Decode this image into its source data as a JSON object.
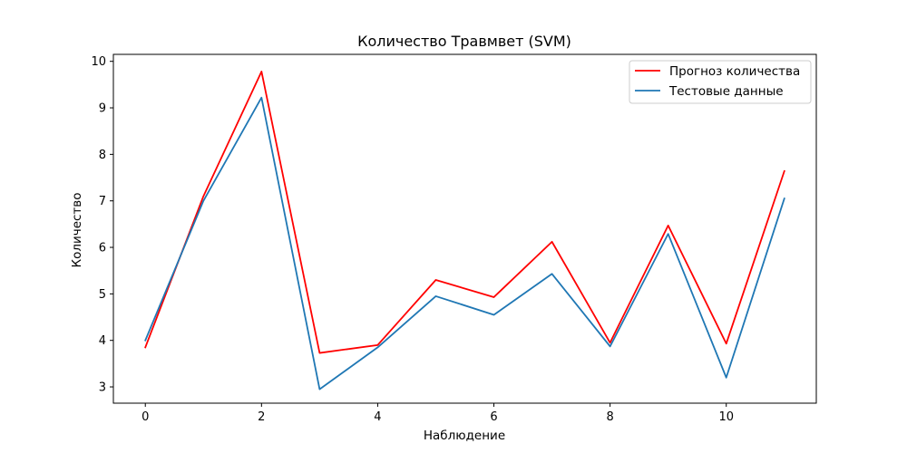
{
  "chart_data": {
    "type": "line",
    "title": "Количество Травмвет (SVM)",
    "xlabel": "Наблюдение",
    "ylabel": "Количество",
    "xlim": [
      -0.55,
      11.55
    ],
    "ylim": [
      2.65,
      10.15
    ],
    "xticks": [
      0,
      2,
      4,
      6,
      8,
      10
    ],
    "yticks": [
      3,
      4,
      5,
      6,
      7,
      8,
      9,
      10
    ],
    "x": [
      0,
      1,
      2,
      3,
      4,
      5,
      6,
      7,
      8,
      9,
      10,
      11
    ],
    "series": [
      {
        "name": "Прогноз количества",
        "color": "#ff0000",
        "values": [
          3.85,
          7.1,
          9.78,
          3.73,
          3.9,
          5.3,
          4.93,
          6.12,
          3.95,
          6.47,
          3.93,
          7.64
        ]
      },
      {
        "name": "Тестовые данные",
        "color": "#1f77b4",
        "values": [
          4.0,
          7.0,
          9.22,
          2.95,
          3.85,
          4.95,
          4.55,
          5.43,
          3.87,
          6.29,
          3.2,
          7.05
        ]
      }
    ],
    "grid": false,
    "legend_position": "top-right"
  }
}
